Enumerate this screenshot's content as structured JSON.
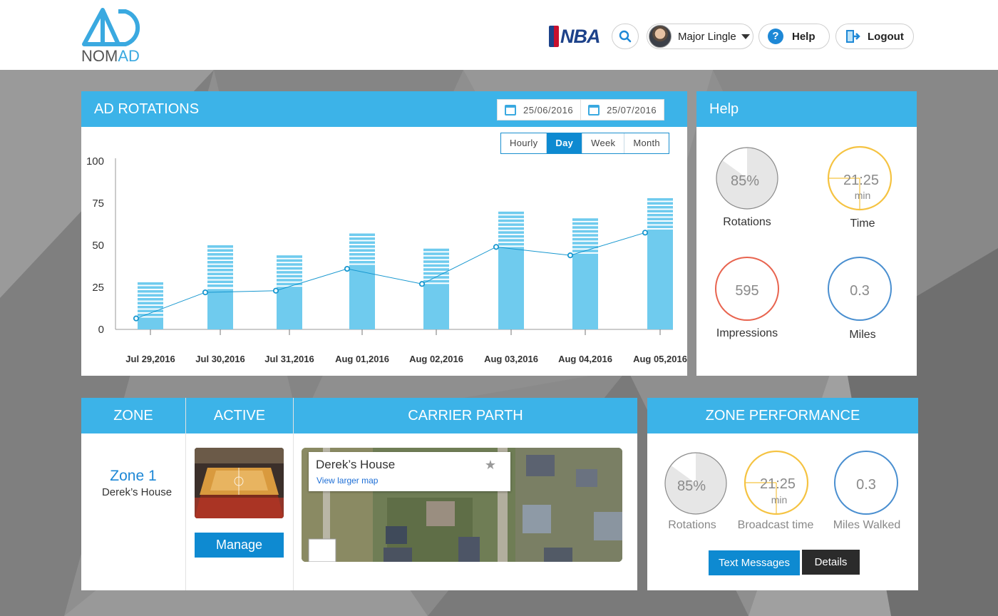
{
  "header": {
    "logo_text_part1": "NOM",
    "logo_text_part2": "AD",
    "brand_badge": "NBA",
    "user_name": "Major Lingle",
    "help_label": "Help",
    "logout_label": "Logout",
    "help_glyph": "?"
  },
  "rotations": {
    "title": "AD ROTATIONS",
    "date_from": "25/06/2016",
    "date_to": "25/07/2016",
    "tabs": [
      "Hourly",
      "Day",
      "Week",
      "Month"
    ],
    "active_tab": "Day"
  },
  "chart_data": {
    "type": "bar",
    "categories": [
      "Jul 29,2016",
      "Jul 30,2016",
      "Jul 31,2016",
      "Aug 01,2016",
      "Aug 02,2016",
      "Aug 03,2016",
      "Aug 04,2016",
      "Aug 05,2016"
    ],
    "series": [
      {
        "values": [
          28,
          50,
          44,
          57,
          48,
          70,
          66,
          78
        ]
      },
      {
        "values": [
          7,
          24,
          24,
          37,
          27,
          49,
          45,
          58
        ]
      },
      {
        "values": [
          6.5,
          22,
          23,
          36,
          27,
          49,
          44,
          57.5
        ]
      }
    ],
    "yticks": [
      0,
      25,
      50,
      75,
      100
    ],
    "ylim": [
      0,
      100
    ],
    "colors": {
      "bar": "#6fcbee",
      "line": "#1797cf"
    }
  },
  "help_panel": {
    "title": "Help",
    "rotations_value": "85%",
    "rotations_label": "Rotations",
    "time_value": "21:25",
    "time_unit": "min",
    "time_label": "Time",
    "impressions_value": "595",
    "impressions_label": "Impressions",
    "miles_value": "0.3",
    "miles_label": "Miles",
    "rotations_fraction": 0.85
  },
  "zone_table": {
    "col_zone": "ZONE",
    "col_active": "ACTIVE",
    "col_path": "CARRIER PARTH",
    "zone_name": "Zone 1",
    "zone_place": "Derek’s House",
    "manage_label": "Manage",
    "map_title": "Derek’s House",
    "map_link": "View larger map"
  },
  "zone_perf": {
    "title": "ZONE PERFORMANCE",
    "rotations_value": "85%",
    "rotations_label": "Rotations",
    "time_value": "21:25",
    "time_unit": "min",
    "time_label": "Broadcast time",
    "miles_value": "0.3",
    "miles_label": "Miles Walked",
    "text_messages_label": "Text Messages",
    "details_label": "Details"
  },
  "colors": {
    "accent": "#3cb3e8",
    "button": "#0e8ad1",
    "time_ring": "#f5c342",
    "impressions_ring": "#e8644f",
    "miles_ring": "#4a8fd0",
    "rotations_ring": "#aaaaaa"
  }
}
